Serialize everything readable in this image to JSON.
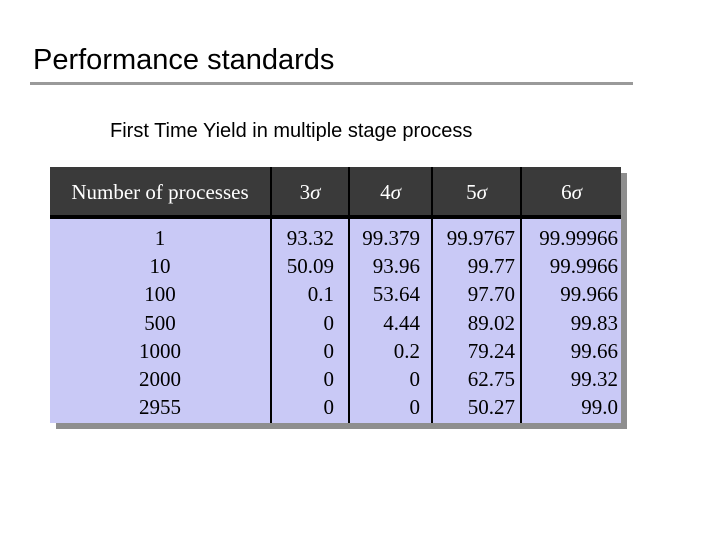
{
  "slide": {
    "title": "Performance standards",
    "subtitle": "First Time Yield in multiple stage process"
  },
  "table": {
    "headers": {
      "processes": "Number of processes",
      "s3_num": "3",
      "s4_num": "4",
      "s5_num": "5",
      "s6_num": "6",
      "sigma": "σ"
    },
    "columns": {
      "processes": [
        "1",
        "10",
        "100",
        "500",
        "1000",
        "2000",
        "2955"
      ],
      "sigma3": [
        "93.32",
        "50.09",
        "0.1",
        "0",
        "0",
        "0",
        "0"
      ],
      "sigma4": [
        "99.379",
        "93.96",
        "53.64",
        "4.44",
        "0.2",
        "0",
        "0"
      ],
      "sigma5": [
        "99.9767",
        "99.77",
        "97.70",
        "89.02",
        "79.24",
        "62.75",
        "50.27"
      ],
      "sigma6": [
        "99.99966",
        "99.9966",
        "99.966",
        "99.83",
        "99.66",
        "99.32",
        "99.0"
      ]
    }
  }
}
